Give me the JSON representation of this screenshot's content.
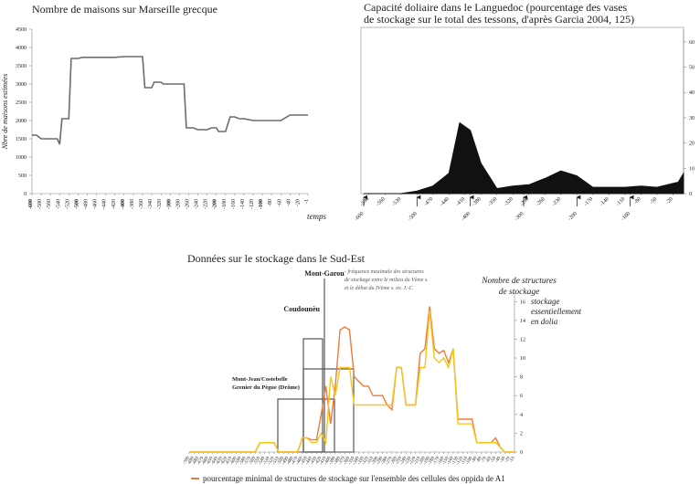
{
  "chart_data": [
    {
      "type": "line",
      "title": "Nombre de maisons sur Marseille grecque",
      "ylabel": "Nbre de maisons estimées",
      "xlabel": "temps",
      "x": [
        -600,
        -590,
        -580,
        -560,
        -545,
        -540,
        -535,
        -520,
        -515,
        -500,
        -490,
        -420,
        -400,
        -360,
        -355,
        -340,
        -335,
        -320,
        -315,
        -270,
        -265,
        -250,
        -240,
        -220,
        -210,
        -200,
        -195,
        -180,
        -170,
        -160,
        -150,
        -140,
        -120,
        -60,
        -40,
        -20,
        -1
      ],
      "values": [
        1600,
        1600,
        1500,
        1500,
        1500,
        1350,
        2050,
        2050,
        3700,
        3700,
        3730,
        3730,
        3750,
        3750,
        2900,
        2900,
        3050,
        3050,
        3000,
        3000,
        1800,
        1800,
        1750,
        1750,
        1800,
        1800,
        1700,
        1700,
        2100,
        2100,
        2050,
        2050,
        2000,
        2000,
        2150,
        2150,
        2150
      ],
      "color": "#6b6b6b",
      "xlim": [
        -600,
        -1
      ],
      "xticks": [
        -600,
        -580,
        -560,
        -540,
        -520,
        -500,
        -480,
        -460,
        -440,
        -420,
        -400,
        -380,
        -360,
        -340,
        -320,
        -300,
        -280,
        -260,
        -240,
        -220,
        -200,
        -180,
        -160,
        -140,
        -120,
        -100,
        -80,
        -60,
        -40,
        -20,
        -1
      ],
      "ylim": [
        0,
        4500
      ],
      "yticks": [
        0,
        500,
        1000,
        1500,
        2000,
        2500,
        3000,
        3500,
        4000,
        4500
      ]
    },
    {
      "type": "area",
      "title": [
        "Capacité doliaire dans le Languedoc (pourcentage des vases",
        "de stockage sur le total des tessons, d'après Garcia 2004, 125)"
      ],
      "x": [
        -600,
        -560,
        -530,
        -500,
        -470,
        -440,
        -420,
        -400,
        -380,
        -350,
        -320,
        -290,
        -260,
        -230,
        -200,
        -170,
        -140,
        -110,
        -80,
        -50,
        -20,
        -10,
        0
      ],
      "values": [
        0,
        0,
        0,
        1,
        3,
        8,
        28,
        25,
        12,
        2,
        3,
        3.5,
        6,
        9,
        7,
        2.5,
        2.5,
        2.5,
        3,
        2.5,
        4,
        4.5,
        8
      ],
      "color": "#111111",
      "xlim": [
        -600,
        0
      ],
      "xticks": [
        -600,
        -590,
        -560,
        -530,
        -500,
        -470,
        -440,
        -410,
        -400,
        -380,
        -350,
        -320,
        -300,
        -290,
        -260,
        -230,
        -200,
        -170,
        -140,
        -110,
        -100,
        -80,
        -50,
        -20
      ],
      "ylim": [
        0,
        65
      ],
      "yticks": [
        0,
        10,
        20,
        30,
        40,
        50,
        60
      ]
    },
    {
      "type": "line",
      "title": "Données sur le stockage dans le Sud-Est",
      "ylabel": [
        "Nombre de structures",
        "de stockage"
      ],
      "annotations": [
        "stockage",
        "essentiellement",
        "en dolia",
        "Mont-Garou",
        "- fréquence maximale des structures",
        "de stockage entre le milieu du Vème s.",
        "et le début du IVème s. av. J.-C.",
        "Coudounèu",
        "Mont-Jean/Costebelle",
        "Grenier du Pègue (Drôme)"
      ],
      "x": [
        -700,
        -690,
        -680,
        -670,
        -660,
        -650,
        -640,
        -630,
        -620,
        -610,
        -600,
        -590,
        -580,
        -570,
        -560,
        -550,
        -540,
        -530,
        -520,
        -510,
        -500,
        -490,
        -480,
        -470,
        -460,
        -450,
        -440,
        -430,
        -420,
        -410,
        -400,
        -390,
        -380,
        -370,
        -360,
        -350,
        -340,
        -330,
        -320,
        -310,
        -300,
        -290,
        -280,
        -270,
        -260,
        -250,
        -240,
        -230,
        -220,
        -210,
        -200,
        -190,
        -180,
        -170,
        -160,
        -150,
        -140,
        -130,
        -120,
        -110,
        -100,
        -90,
        -80,
        -70,
        -60,
        -50,
        -40,
        -30,
        -20,
        -10
      ],
      "series": [
        {
          "name": "pourcentage minimal de structures de stockage sur l'ensemble des cellules des oppida de A1",
          "color": "#f07a3a",
          "values": [
            0,
            0,
            0,
            0,
            0,
            0,
            0,
            0,
            0,
            0,
            0,
            0,
            0,
            0,
            0,
            1,
            1,
            1,
            1,
            0,
            0,
            0,
            0,
            0,
            1.5,
            1.5,
            1.3,
            1.3,
            4,
            7,
            3,
            7,
            13,
            13.3,
            13,
            8,
            7.5,
            7,
            7,
            6,
            6,
            6,
            5,
            4.5,
            9,
            9,
            5,
            5,
            5,
            10.5,
            11,
            15.5,
            11,
            10.5,
            10.8,
            9.5,
            11,
            3.5,
            3.5,
            3.5,
            3.5,
            1,
            1,
            1,
            1,
            1.5,
            0.5,
            0,
            0,
            0
          ]
        },
        {
          "color": "#f5c518",
          "values": [
            0,
            0,
            0,
            0,
            0,
            0,
            0,
            0,
            0,
            0,
            0,
            0,
            0,
            0,
            0,
            1,
            1,
            1,
            1,
            0,
            0,
            0,
            0,
            0,
            1.5,
            1.5,
            1,
            1,
            2,
            1,
            8,
            6,
            9,
            9,
            9,
            5,
            5,
            5,
            5,
            5,
            5,
            5,
            5,
            5,
            9,
            9,
            5,
            5,
            5,
            9,
            9,
            15,
            10,
            9.5,
            10,
            9,
            11,
            3,
            3,
            3,
            3,
            1,
            1,
            1,
            1,
            1,
            0.5,
            0,
            0,
            0
          ]
        }
      ],
      "xlim": [
        -700,
        -10
      ],
      "xticks": [
        -700,
        -690,
        -680,
        -670,
        -660,
        -650,
        -640,
        -630,
        -620,
        -610,
        -600,
        -590,
        -580,
        -570,
        -560,
        -550,
        -540,
        -530,
        -520,
        -510,
        -500,
        -490,
        -480,
        -470,
        -460,
        -450,
        -440,
        -430,
        -420,
        -410,
        -400,
        -390,
        -380,
        -370,
        -360,
        -350,
        -340,
        -330,
        -320,
        -310,
        -300,
        -290,
        -280,
        -270,
        -260,
        -250,
        -240,
        -230,
        -220,
        -210,
        -200,
        -190,
        -180,
        -170,
        -160,
        -150,
        -140,
        -130,
        -120,
        -110,
        -100,
        -90,
        -80,
        -70,
        -60,
        -50,
        -40,
        -30,
        -20,
        -10
      ],
      "ylim": [
        0,
        17
      ],
      "yticks": [
        0,
        2,
        4,
        6,
        8,
        10,
        12,
        14,
        16
      ]
    }
  ]
}
